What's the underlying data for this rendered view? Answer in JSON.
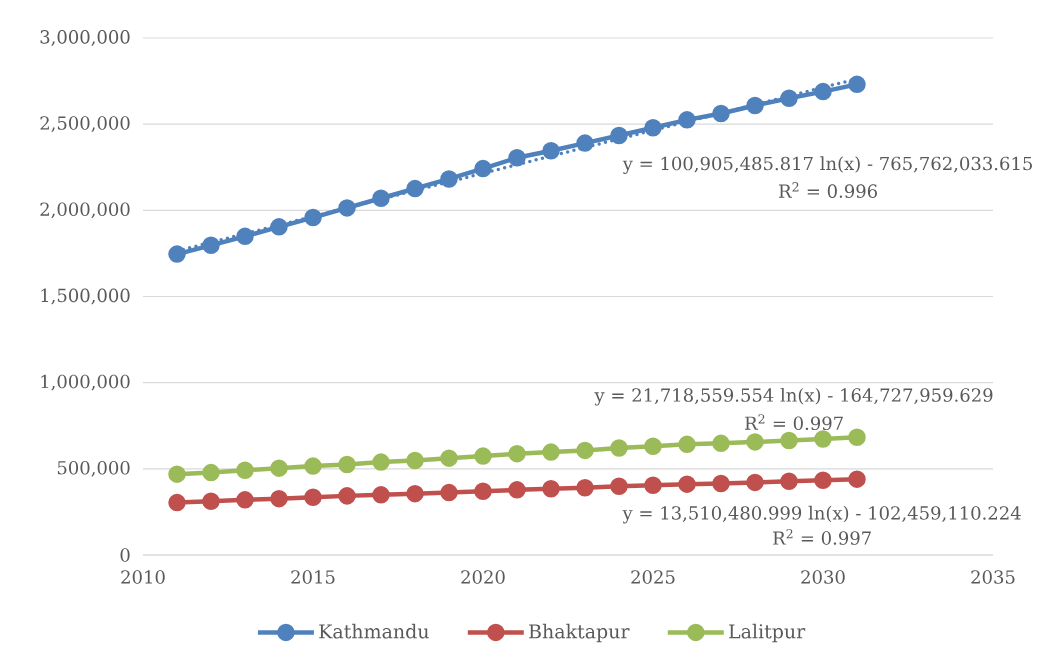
{
  "chart_data": {
    "type": "line",
    "x": [
      2011,
      2012,
      2013,
      2014,
      2015,
      2016,
      2017,
      2018,
      2019,
      2020,
      2021,
      2022,
      2023,
      2024,
      2025,
      2026,
      2027,
      2028,
      2029,
      2030,
      2031
    ],
    "xlim": [
      2010,
      2035
    ],
    "xticks": [
      2010,
      2015,
      2020,
      2025,
      2030,
      2035
    ],
    "ylim": [
      0,
      3000000
    ],
    "yticks": [
      0,
      {
        "value": 500000,
        "label": "500,000"
      },
      {
        "value": 1000000,
        "label": "1,000,000"
      },
      {
        "value": 1500000,
        "label": "1,500,000"
      },
      {
        "value": 2000000,
        "label": "2,000,000"
      },
      {
        "value": 2500000,
        "label": "2,500,000"
      },
      {
        "value": 3000000,
        "label": "3,000,000"
      }
    ],
    "grid": "y",
    "legend": "bottom",
    "marker": "circle",
    "line_style": "solid",
    "series": [
      {
        "name": "Kathmandu",
        "color": "#4f81bd",
        "values": [
          1746000,
          1797000,
          1849000,
          1904000,
          1958000,
          2014000,
          2070000,
          2126000,
          2182000,
          2242000,
          2305000,
          2346000,
          2390000,
          2434000,
          2479000,
          2525000,
          2562000,
          2608000,
          2650000,
          2689000,
          2731000
        ]
      },
      {
        "name": "Bhaktapur",
        "color": "#c0504d",
        "values": [
          304000,
          312000,
          320000,
          327000,
          335000,
          343000,
          349000,
          356000,
          362000,
          370000,
          378000,
          384000,
          390000,
          399000,
          405000,
          411000,
          415000,
          421000,
          428000,
          434000,
          440000
        ]
      },
      {
        "name": "Lalitpur",
        "color": "#9bbb59",
        "values": [
          469000,
          478000,
          492000,
          504000,
          516000,
          525000,
          539000,
          548000,
          562000,
          574000,
          588000,
          597000,
          607000,
          621000,
          631000,
          642000,
          648000,
          656000,
          664000,
          673000,
          683000
        ]
      },
      {
        "type": "line",
        "color": "#4f81bd",
        "line_style": "dotted",
        "marker": "none",
        "x": [
          2011,
          2016,
          2021,
          2026,
          2031
        ],
        "values": [
          1764000,
          2015000,
          2265000,
          2514000,
          2763000
        ]
      }
    ],
    "annotations": [
      "y = 100,905,485.817 ln(x) - 765,762,033.615",
      "R$^{2}$ = 0.996",
      "y = 21,718,559.554 ln(x) - 164,727,959.629",
      "R$^{2}$ = 0.997",
      "y = 13,510,480.999 ln(x) - 102,459,110.224",
      "R$^{2}$ = 0.997"
    ]
  }
}
